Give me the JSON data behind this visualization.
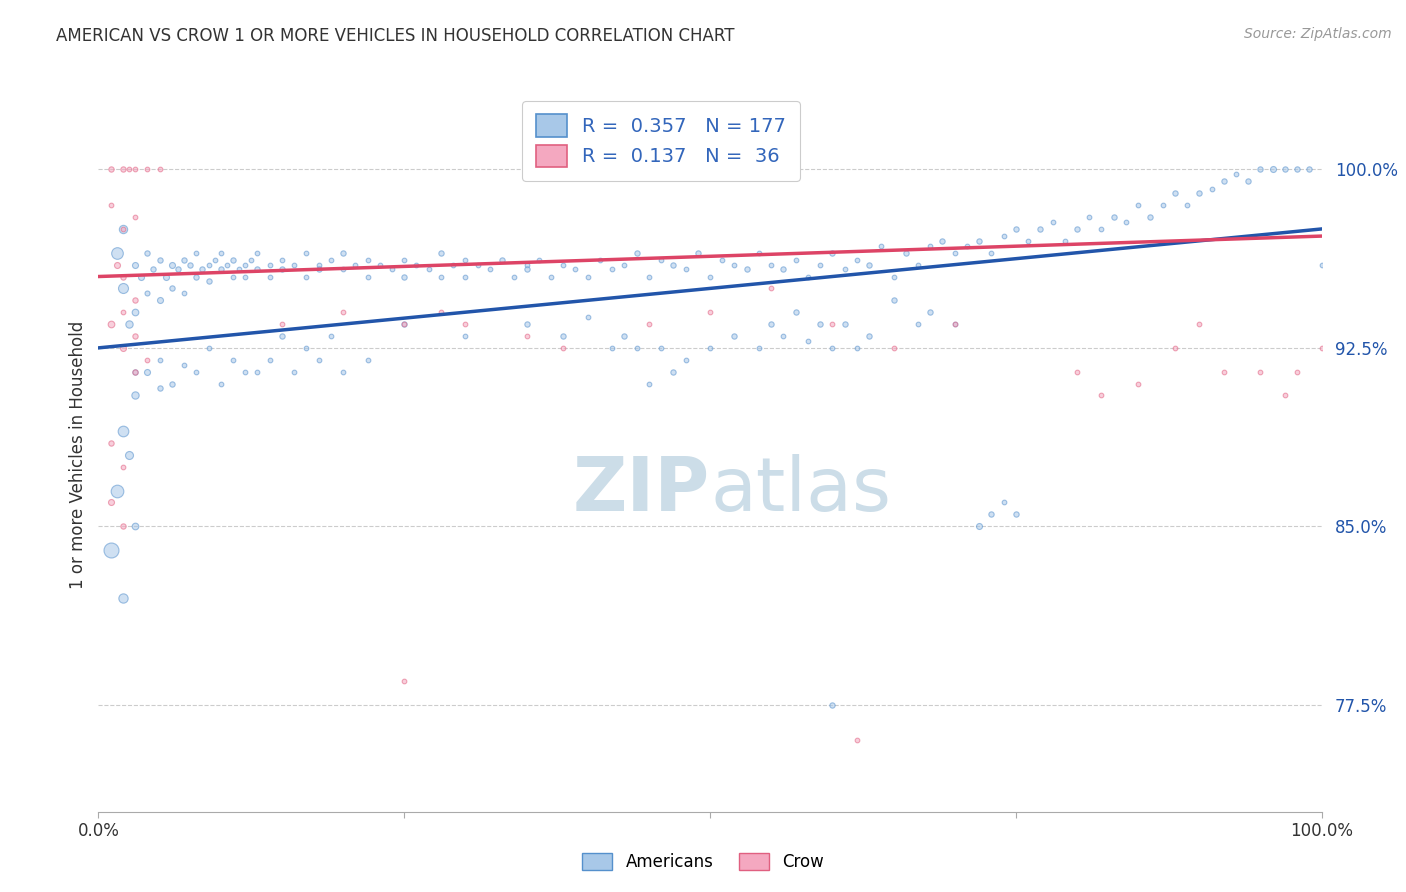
{
  "title": "AMERICAN VS CROW 1 OR MORE VEHICLES IN HOUSEHOLD CORRELATION CHART",
  "source": "Source: ZipAtlas.com",
  "ylabel": "1 or more Vehicles in Household",
  "ytick_values": [
    77.5,
    85.0,
    92.5,
    100.0
  ],
  "xlim": [
    0,
    100
  ],
  "ylim": [
    73,
    103
  ],
  "blue_color": "#A8C8E8",
  "pink_color": "#F4A8C0",
  "blue_edge_color": "#5590CC",
  "pink_edge_color": "#E06080",
  "blue_line_color": "#2255AA",
  "pink_line_color": "#DD4466",
  "watermark_color": "#CCDDE8",
  "blue_line": [
    0,
    92.5,
    100,
    97.5
  ],
  "pink_line": [
    0,
    95.5,
    100,
    97.2
  ],
  "blue_points": [
    [
      1.5,
      96.5,
      35
    ],
    [
      2,
      95.0,
      30
    ],
    [
      2,
      97.5,
      25
    ],
    [
      2.5,
      93.5,
      22
    ],
    [
      3,
      94.0,
      20
    ],
    [
      3,
      96.0,
      18
    ],
    [
      3.5,
      95.5,
      18
    ],
    [
      4,
      96.5,
      16
    ],
    [
      4,
      94.8,
      15
    ],
    [
      4.5,
      95.8,
      16
    ],
    [
      5,
      96.2,
      16
    ],
    [
      5,
      94.5,
      18
    ],
    [
      5.5,
      95.5,
      18
    ],
    [
      6,
      96.0,
      18
    ],
    [
      6,
      95.0,
      16
    ],
    [
      6.5,
      95.8,
      16
    ],
    [
      7,
      96.2,
      16
    ],
    [
      7,
      94.8,
      14
    ],
    [
      7.5,
      96.0,
      16
    ],
    [
      8,
      95.5,
      16
    ],
    [
      8,
      96.5,
      14
    ],
    [
      8.5,
      95.8,
      16
    ],
    [
      9,
      96.0,
      14
    ],
    [
      9,
      95.3,
      16
    ],
    [
      9.5,
      96.2,
      14
    ],
    [
      10,
      95.8,
      16
    ],
    [
      10,
      96.5,
      14
    ],
    [
      10.5,
      96.0,
      14
    ],
    [
      11,
      95.5,
      14
    ],
    [
      11,
      96.2,
      16
    ],
    [
      11.5,
      95.8,
      14
    ],
    [
      12,
      96.0,
      14
    ],
    [
      12,
      95.5,
      14
    ],
    [
      12.5,
      96.2,
      14
    ],
    [
      13,
      95.8,
      16
    ],
    [
      13,
      96.5,
      14
    ],
    [
      14,
      96.0,
      14
    ],
    [
      14,
      95.5,
      14
    ],
    [
      15,
      96.2,
      14
    ],
    [
      15,
      95.8,
      16
    ],
    [
      16,
      96.0,
      14
    ],
    [
      17,
      95.5,
      14
    ],
    [
      17,
      96.5,
      14
    ],
    [
      18,
      96.0,
      14
    ],
    [
      18,
      95.8,
      16
    ],
    [
      19,
      96.2,
      14
    ],
    [
      20,
      95.8,
      14
    ],
    [
      20,
      96.5,
      16
    ],
    [
      21,
      96.0,
      14
    ],
    [
      22,
      95.5,
      14
    ],
    [
      22,
      96.2,
      14
    ],
    [
      23,
      96.0,
      14
    ],
    [
      24,
      95.8,
      14
    ],
    [
      25,
      96.2,
      14
    ],
    [
      25,
      95.5,
      16
    ],
    [
      26,
      96.0,
      14
    ],
    [
      27,
      95.8,
      14
    ],
    [
      28,
      96.5,
      16
    ],
    [
      28,
      95.5,
      14
    ],
    [
      29,
      96.0,
      14
    ],
    [
      30,
      96.2,
      14
    ],
    [
      30,
      95.5,
      14
    ],
    [
      31,
      96.0,
      14
    ],
    [
      32,
      95.8,
      14
    ],
    [
      33,
      96.2,
      16
    ],
    [
      34,
      95.5,
      14
    ],
    [
      35,
      96.0,
      14
    ],
    [
      35,
      95.8,
      16
    ],
    [
      36,
      96.2,
      14
    ],
    [
      37,
      95.5,
      14
    ],
    [
      38,
      96.0,
      14
    ],
    [
      39,
      95.8,
      14
    ],
    [
      40,
      95.5,
      14
    ],
    [
      41,
      96.2,
      14
    ],
    [
      42,
      95.8,
      14
    ],
    [
      43,
      96.0,
      14
    ],
    [
      44,
      96.5,
      16
    ],
    [
      45,
      95.5,
      14
    ],
    [
      46,
      96.2,
      14
    ],
    [
      47,
      96.0,
      16
    ],
    [
      48,
      95.8,
      14
    ],
    [
      49,
      96.5,
      16
    ],
    [
      50,
      95.5,
      14
    ],
    [
      51,
      96.2,
      14
    ],
    [
      52,
      96.0,
      14
    ],
    [
      53,
      95.8,
      16
    ],
    [
      54,
      96.5,
      14
    ],
    [
      55,
      96.0,
      14
    ],
    [
      56,
      95.8,
      16
    ],
    [
      57,
      96.2,
      14
    ],
    [
      58,
      95.5,
      14
    ],
    [
      59,
      96.0,
      14
    ],
    [
      60,
      96.5,
      16
    ],
    [
      61,
      95.8,
      14
    ],
    [
      62,
      96.2,
      14
    ],
    [
      63,
      96.0,
      16
    ],
    [
      64,
      96.8,
      14
    ],
    [
      65,
      95.5,
      14
    ],
    [
      66,
      96.5,
      16
    ],
    [
      67,
      96.0,
      14
    ],
    [
      68,
      96.8,
      14
    ],
    [
      69,
      97.0,
      16
    ],
    [
      70,
      96.5,
      14
    ],
    [
      71,
      96.8,
      14
    ],
    [
      72,
      97.0,
      16
    ],
    [
      73,
      96.5,
      14
    ],
    [
      74,
      97.2,
      14
    ],
    [
      75,
      97.5,
      16
    ],
    [
      76,
      97.0,
      14
    ],
    [
      77,
      97.5,
      16
    ],
    [
      78,
      97.8,
      14
    ],
    [
      79,
      97.0,
      14
    ],
    [
      80,
      97.5,
      16
    ],
    [
      81,
      98.0,
      14
    ],
    [
      82,
      97.5,
      14
    ],
    [
      83,
      98.0,
      16
    ],
    [
      84,
      97.8,
      14
    ],
    [
      85,
      98.5,
      14
    ],
    [
      86,
      98.0,
      16
    ],
    [
      87,
      98.5,
      14
    ],
    [
      88,
      99.0,
      16
    ],
    [
      89,
      98.5,
      14
    ],
    [
      90,
      99.0,
      16
    ],
    [
      91,
      99.2,
      14
    ],
    [
      92,
      99.5,
      16
    ],
    [
      93,
      99.8,
      14
    ],
    [
      94,
      99.5,
      16
    ],
    [
      95,
      100.0,
      16
    ],
    [
      96,
      100.0,
      18
    ],
    [
      97,
      100.0,
      16
    ],
    [
      98,
      100.0,
      16
    ],
    [
      99,
      100.0,
      16
    ],
    [
      100,
      96.0,
      14
    ],
    [
      1,
      84.0,
      45
    ],
    [
      1.5,
      86.5,
      38
    ],
    [
      2,
      89.0,
      32
    ],
    [
      2,
      82.0,
      28
    ],
    [
      2.5,
      88.0,
      24
    ],
    [
      3,
      90.5,
      22
    ],
    [
      3,
      85.0,
      20
    ],
    [
      4,
      91.5,
      18
    ],
    [
      5,
      90.8,
      16
    ],
    [
      6,
      91.0,
      16
    ],
    [
      8,
      91.5,
      14
    ],
    [
      10,
      91.0,
      14
    ],
    [
      12,
      91.5,
      14
    ],
    [
      14,
      92.0,
      14
    ],
    [
      16,
      91.5,
      14
    ],
    [
      18,
      92.0,
      14
    ],
    [
      20,
      91.5,
      14
    ],
    [
      22,
      92.0,
      14
    ],
    [
      3,
      91.5,
      16
    ],
    [
      5,
      92.0,
      14
    ],
    [
      7,
      91.8,
      14
    ],
    [
      9,
      92.5,
      14
    ],
    [
      11,
      92.0,
      14
    ],
    [
      13,
      91.5,
      14
    ],
    [
      15,
      93.0,
      16
    ],
    [
      17,
      92.5,
      14
    ],
    [
      19,
      93.0,
      14
    ],
    [
      25,
      93.5,
      16
    ],
    [
      30,
      93.0,
      14
    ],
    [
      35,
      93.5,
      16
    ],
    [
      38,
      93.0,
      16
    ],
    [
      40,
      93.8,
      14
    ],
    [
      42,
      92.5,
      14
    ],
    [
      43,
      93.0,
      16
    ],
    [
      44,
      92.5,
      14
    ],
    [
      45,
      91.0,
      14
    ],
    [
      46,
      92.5,
      14
    ],
    [
      47,
      91.5,
      16
    ],
    [
      48,
      92.0,
      14
    ],
    [
      50,
      92.5,
      14
    ],
    [
      52,
      93.0,
      16
    ],
    [
      54,
      92.5,
      14
    ],
    [
      55,
      93.5,
      16
    ],
    [
      56,
      93.0,
      14
    ],
    [
      57,
      94.0,
      16
    ],
    [
      58,
      92.8,
      14
    ],
    [
      59,
      93.5,
      16
    ],
    [
      60,
      92.5,
      14
    ],
    [
      61,
      93.5,
      16
    ],
    [
      62,
      92.5,
      14
    ],
    [
      63,
      93.0,
      16
    ],
    [
      65,
      94.5,
      16
    ],
    [
      67,
      93.5,
      14
    ],
    [
      68,
      94.0,
      16
    ],
    [
      70,
      93.5,
      14
    ],
    [
      72,
      85.0,
      18
    ],
    [
      73,
      85.5,
      16
    ],
    [
      74,
      86.0,
      14
    ],
    [
      75,
      85.5,
      16
    ],
    [
      60,
      77.5,
      16
    ]
  ],
  "pink_points": [
    [
      1,
      100.0,
      16
    ],
    [
      2,
      100.0,
      16
    ],
    [
      2.5,
      100.0,
      14
    ],
    [
      3,
      100.0,
      14
    ],
    [
      4,
      100.0,
      14
    ],
    [
      5,
      100.0,
      14
    ],
    [
      1,
      98.5,
      14
    ],
    [
      2,
      97.5,
      14
    ],
    [
      3,
      98.0,
      14
    ],
    [
      1.5,
      96.0,
      18
    ],
    [
      2,
      95.5,
      16
    ],
    [
      3,
      94.5,
      16
    ],
    [
      1,
      93.5,
      20
    ],
    [
      2,
      92.5,
      18
    ],
    [
      3,
      91.5,
      16
    ],
    [
      2,
      94.0,
      14
    ],
    [
      3,
      93.0,
      16
    ],
    [
      4,
      92.0,
      14
    ],
    [
      1,
      88.5,
      16
    ],
    [
      2,
      87.5,
      14
    ],
    [
      1,
      86.0,
      18
    ],
    [
      2,
      85.0,
      16
    ],
    [
      15,
      93.5,
      14
    ],
    [
      20,
      94.0,
      14
    ],
    [
      25,
      93.5,
      14
    ],
    [
      28,
      94.0,
      14
    ],
    [
      30,
      93.5,
      14
    ],
    [
      35,
      93.0,
      14
    ],
    [
      38,
      92.5,
      14
    ],
    [
      45,
      93.5,
      14
    ],
    [
      50,
      94.0,
      14
    ],
    [
      55,
      95.0,
      14
    ],
    [
      60,
      93.5,
      14
    ],
    [
      65,
      92.5,
      14
    ],
    [
      70,
      93.5,
      14
    ],
    [
      80,
      91.5,
      14
    ],
    [
      82,
      90.5,
      14
    ],
    [
      85,
      91.0,
      14
    ],
    [
      88,
      92.5,
      14
    ],
    [
      90,
      93.5,
      14
    ],
    [
      92,
      91.5,
      14
    ],
    [
      95,
      91.5,
      14
    ],
    [
      97,
      90.5,
      14
    ],
    [
      98,
      91.5,
      14
    ],
    [
      100,
      92.5,
      14
    ],
    [
      25,
      78.5,
      14
    ],
    [
      62,
      76.0,
      14
    ]
  ]
}
